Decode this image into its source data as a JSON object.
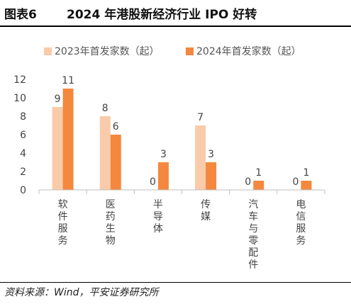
{
  "figure": {
    "number": "图表6",
    "title": "2024 年港股新经济行业 IPO 好转",
    "source": "资料来源：Wind，平安证券研究所"
  },
  "colors": {
    "series_2023": "#F9CBAA",
    "series_2024": "#F4883E"
  },
  "chart_data": {
    "type": "bar",
    "categories": [
      "软件服务",
      "医药生物",
      "半导体",
      "传媒",
      "汽车与零配件",
      "电信服务"
    ],
    "series": [
      {
        "name": "2023年首发家数（起）",
        "values": [
          9,
          8,
          0,
          7,
          0,
          0
        ]
      },
      {
        "name": "2024年首发家数（起）",
        "values": [
          11,
          6,
          3,
          3,
          1,
          1
        ]
      }
    ],
    "ylim": [
      0,
      12
    ],
    "yticks": [
      0,
      2,
      4,
      6,
      8,
      10,
      12
    ],
    "data_labels": true,
    "legend": "top"
  }
}
